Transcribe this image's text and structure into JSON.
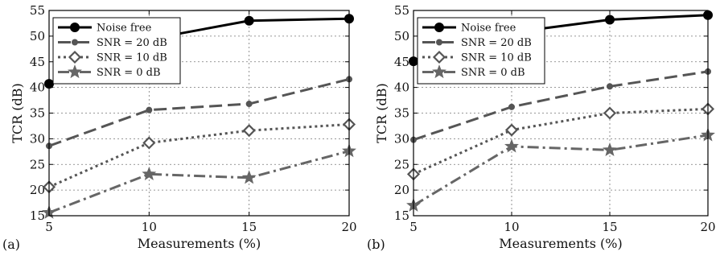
{
  "chart_data": [
    {
      "type": "line",
      "panel_label": "(a)",
      "x": [
        5,
        10,
        15,
        20
      ],
      "xlabel": "Measurements (%)",
      "ylabel": "TCR (dB)",
      "xlim": [
        5,
        20
      ],
      "ylim": [
        15,
        55
      ],
      "xticks": [
        "5",
        "10",
        "15",
        "20"
      ],
      "yticks": [
        "15",
        "20",
        "25",
        "30",
        "35",
        "40",
        "45",
        "50",
        "55"
      ],
      "grid": true,
      "legend_position": "top-left",
      "series": [
        {
          "name": "Noise free",
          "values": [
            40.7,
            49.4,
            53.0,
            53.4
          ],
          "color": "#000000",
          "dash": "solid",
          "marker": "circle",
          "width": 3
        },
        {
          "name": "SNR = 20 dB",
          "values": [
            28.6,
            35.6,
            36.8,
            41.6
          ],
          "color": "#555555",
          "dash": "dashed",
          "marker": "dot",
          "width": 3
        },
        {
          "name": "SNR = 10 dB",
          "values": [
            20.6,
            29.2,
            31.6,
            32.8
          ],
          "color": "#555555",
          "dash": "dotted",
          "marker": "diamond",
          "width": 3
        },
        {
          "name": "SNR = 0 dB",
          "values": [
            15.6,
            23.1,
            22.4,
            27.6
          ],
          "color": "#666666",
          "dash": "dashdot",
          "marker": "star",
          "width": 3
        }
      ]
    },
    {
      "type": "line",
      "panel_label": "(b)",
      "x": [
        5,
        10,
        15,
        20
      ],
      "xlabel": "Measurements (%)",
      "ylabel": "TCR (dB)",
      "xlim": [
        5,
        20
      ],
      "ylim": [
        15,
        55
      ],
      "xticks": [
        "5",
        "10",
        "15",
        "20"
      ],
      "yticks": [
        "15",
        "20",
        "25",
        "30",
        "35",
        "40",
        "45",
        "50",
        "55"
      ],
      "grid": true,
      "legend_position": "top-left",
      "series": [
        {
          "name": "Noise free",
          "values": [
            45.1,
            50.7,
            53.2,
            54.1
          ],
          "color": "#000000",
          "dash": "solid",
          "marker": "circle",
          "width": 3
        },
        {
          "name": "SNR = 20 dB",
          "values": [
            29.8,
            36.2,
            40.2,
            43.1
          ],
          "color": "#555555",
          "dash": "dashed",
          "marker": "dot",
          "width": 3
        },
        {
          "name": "SNR = 10 dB",
          "values": [
            23.1,
            31.7,
            35.0,
            35.8
          ],
          "color": "#555555",
          "dash": "dotted",
          "marker": "diamond",
          "width": 3
        },
        {
          "name": "SNR = 0 dB",
          "values": [
            17.0,
            28.5,
            27.8,
            30.7
          ],
          "color": "#666666",
          "dash": "dashdot",
          "marker": "star",
          "width": 3
        }
      ]
    }
  ]
}
